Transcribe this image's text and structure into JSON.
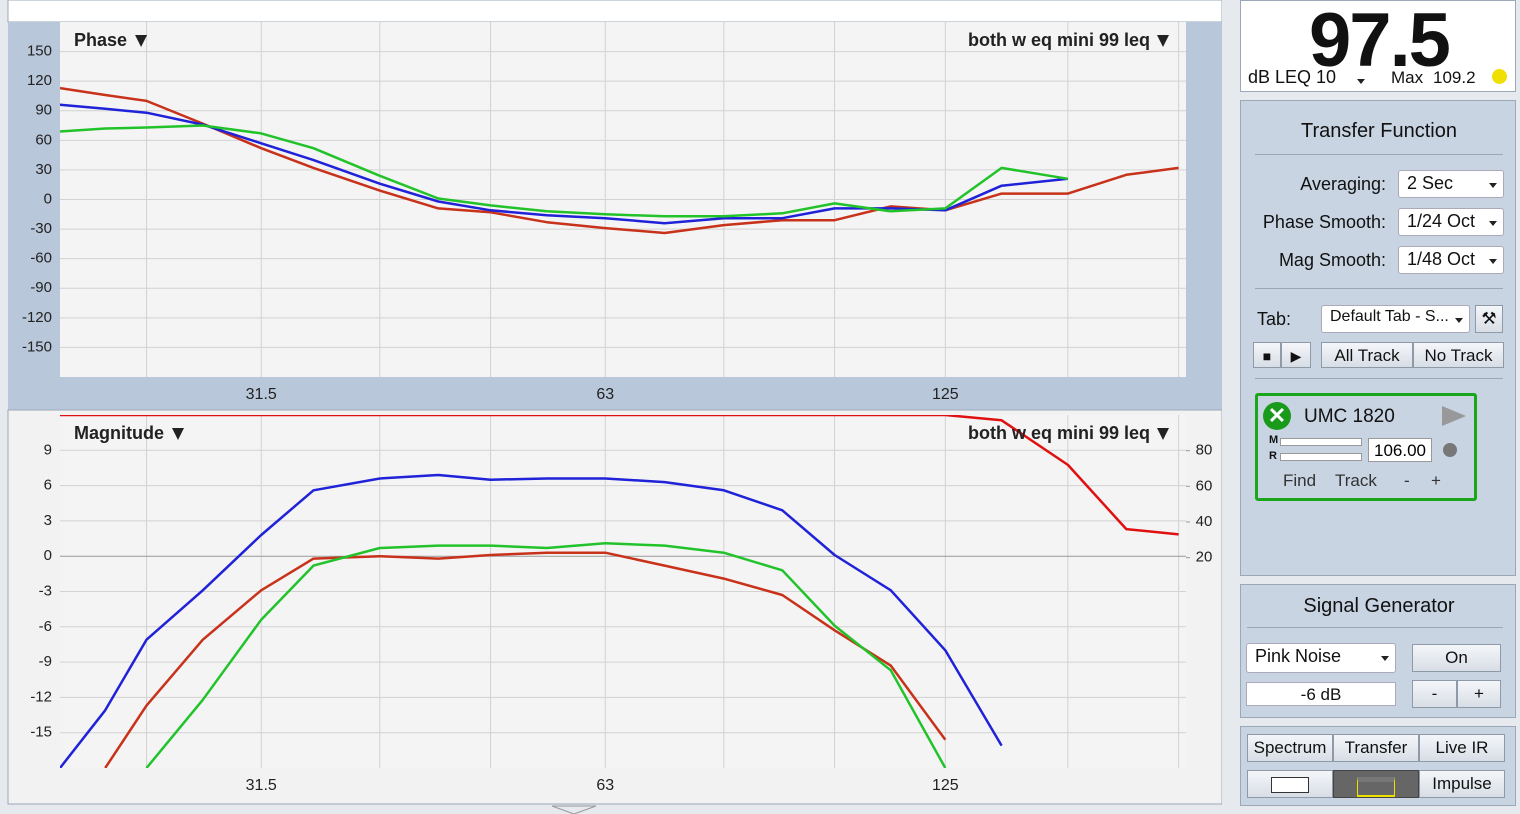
{
  "meter": {
    "value": "97.5",
    "label": "dB LEQ 10",
    "max_label": "Max",
    "max_value": "109.2"
  },
  "transfer_function": {
    "title": "Transfer Function",
    "settings": [
      {
        "label": "Averaging:",
        "value": "2 Sec"
      },
      {
        "label": "Phase Smooth:",
        "value": "1/24 Oct"
      },
      {
        "label": "Mag Smooth:",
        "value": "1/48 Oct"
      }
    ],
    "tab_label": "Tab:",
    "tab_value": "Default Tab - S...",
    "buttons": [
      "All Track",
      "No Track"
    ],
    "device": {
      "name": "UMC 1820",
      "meter_labels": [
        "M",
        "R"
      ],
      "delay": "106.00",
      "buttons": [
        "Find",
        "Track",
        "-",
        "+"
      ]
    }
  },
  "signal_generator": {
    "title": "Signal Generator",
    "source": "Pink Noise",
    "level": "-6 dB",
    "on": "On",
    "buttons": [
      "-",
      "+"
    ]
  },
  "view_buttons": [
    "Spectrum",
    "Transfer",
    "Live IR",
    "Impulse"
  ],
  "chart_data": [
    {
      "type": "line",
      "title": "Phase",
      "trace": "both w eq mini 99 leq",
      "xscale": "log",
      "x": [
        21,
        23,
        25,
        28,
        31.5,
        35,
        40,
        45,
        50,
        56,
        63,
        71,
        80,
        90,
        100,
        112,
        125,
        140,
        160,
        180,
        200
      ],
      "xlim": [
        21,
        203
      ],
      "xticks": [
        31.5,
        63,
        125
      ],
      "xminor": [
        25,
        40,
        50,
        80,
        100,
        160,
        200
      ],
      "ylim": [
        -180,
        180
      ],
      "yticks": [
        -150,
        -120,
        -90,
        -60,
        -30,
        0,
        30,
        60,
        90,
        120,
        150
      ],
      "grid": true,
      "series": [
        {
          "color": "#c8321a",
          "values": [
            113,
            106,
            100,
            77,
            52,
            32,
            9,
            -9,
            -13,
            -23,
            -29,
            -34,
            -26,
            -21,
            -21,
            -7,
            -11,
            6,
            6,
            25,
            32
          ]
        },
        {
          "color": "#1f22d8",
          "values": [
            96,
            92,
            88,
            76,
            57,
            40,
            16,
            -2,
            -11,
            -16,
            -19,
            -24,
            -19,
            -19,
            -9,
            -9,
            -11,
            14,
            21,
            null,
            null
          ]
        },
        {
          "color": "#22c32a",
          "values": [
            69,
            72,
            73,
            75,
            67,
            52,
            24,
            1,
            -6,
            -12,
            -15,
            -17,
            -17,
            -14,
            -4,
            -12,
            -9,
            32,
            21,
            null,
            null
          ]
        }
      ]
    },
    {
      "type": "line",
      "title": "Magnitude",
      "trace": "both w eq mini 99 leq",
      "xscale": "log",
      "x": [
        21,
        23,
        25,
        28,
        31.5,
        35,
        40,
        45,
        50,
        56,
        63,
        71,
        80,
        90,
        100,
        112,
        125,
        140,
        160,
        180,
        200
      ],
      "xlim": [
        21,
        203
      ],
      "xticks": [
        31.5,
        63,
        125
      ],
      "xminor": [
        25,
        40,
        50,
        80,
        100,
        160,
        200
      ],
      "ylim": [
        -18,
        12
      ],
      "yticks": [
        -15,
        -12,
        -9,
        -6,
        -3,
        0,
        3,
        6,
        9
      ],
      "y2lim": [
        -98,
        100
      ],
      "y2ticks": [
        20,
        40,
        60,
        80
      ],
      "grid": true,
      "series": [
        {
          "color": "#1f22d8",
          "values": [
            -18,
            -13.1,
            -7.1,
            -2.9,
            1.8,
            5.6,
            6.6,
            6.9,
            6.5,
            6.6,
            6.6,
            6.3,
            5.6,
            3.9,
            0.1,
            -2.9,
            -8,
            -16.1,
            null,
            null,
            null
          ]
        },
        {
          "color": "#c8321a",
          "values": [
            null,
            -18,
            -12.7,
            -7.1,
            -2.9,
            -0.2,
            0,
            -0.2,
            0.1,
            0.3,
            0.3,
            -0.8,
            -1.9,
            -3.3,
            -6.3,
            -9.3,
            -15.6,
            null,
            null,
            null,
            null
          ]
        },
        {
          "color": "#22c32a",
          "values": [
            null,
            null,
            -18,
            -12.2,
            -5.4,
            -0.8,
            0.7,
            0.9,
            0.9,
            0.7,
            1.1,
            0.9,
            0.3,
            -1.2,
            -5.9,
            -9.7,
            -18,
            null,
            null,
            null,
            null
          ]
        },
        {
          "color": "#e01010",
          "axis": "y2",
          "values": [
            100,
            100,
            100,
            100,
            100,
            100,
            100,
            100,
            100,
            100,
            100,
            100,
            100,
            100,
            100,
            100,
            100,
            97,
            72,
            36,
            33
          ]
        }
      ]
    }
  ]
}
